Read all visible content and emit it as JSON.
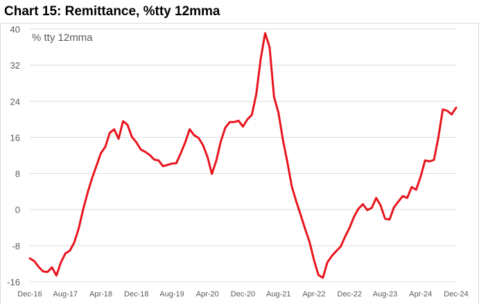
{
  "title": "Chart 15: Remittance, %tty 12mma",
  "chart_data": {
    "type": "line",
    "title": "Chart 15: Remittance, %tty 12mma",
    "annotation": "% tty 12mma",
    "xlabel": "",
    "ylabel": "",
    "ylim": [
      -16,
      40
    ],
    "yticks": [
      40,
      32,
      24,
      16,
      8,
      0,
      -8,
      -16
    ],
    "ytick_labels": [
      "40",
      "32",
      "24",
      "16",
      "8",
      "0",
      "-8",
      "-16"
    ],
    "xtick_labels": [
      "Dec-16",
      "Aug-17",
      "Apr-18",
      "Dec-18",
      "Aug-19",
      "Apr-20",
      "Dec-20",
      "Aug-21",
      "Apr-22",
      "Dec-22",
      "Aug-23",
      "Apr-24",
      "Dec-24"
    ],
    "grid": true,
    "legend": "none",
    "line_color": "#e8141c",
    "grid_color": "#d9d9d9",
    "series": [
      {
        "x": [
          "Dec-16",
          "Jan-17",
          "Feb-17",
          "Mar-17",
          "Apr-17",
          "May-17",
          "Jun-17",
          "Jul-17",
          "Aug-17",
          "Sep-17",
          "Oct-17",
          "Nov-17",
          "Dec-17",
          "Jan-18",
          "Feb-18",
          "Mar-18",
          "Apr-18",
          "May-18",
          "Jun-18",
          "Jul-18",
          "Aug-18",
          "Sep-18",
          "Oct-18",
          "Nov-18",
          "Dec-18",
          "Jan-19",
          "Feb-19",
          "Mar-19",
          "Apr-19",
          "May-19",
          "Jun-19",
          "Jul-19",
          "Aug-19",
          "Sep-19",
          "Oct-19",
          "Nov-19",
          "Dec-19",
          "Jan-20",
          "Feb-20",
          "Mar-20",
          "Apr-20",
          "May-20",
          "Jun-20",
          "Jul-20",
          "Aug-20",
          "Sep-20",
          "Oct-20",
          "Nov-20",
          "Dec-20",
          "Jan-21",
          "Feb-21",
          "Mar-21",
          "Apr-21",
          "May-21",
          "Jun-21",
          "Jul-21",
          "Aug-21",
          "Sep-21",
          "Oct-21",
          "Nov-21",
          "Dec-21",
          "Jan-22",
          "Feb-22",
          "Mar-22",
          "Apr-22",
          "May-22",
          "Jun-22",
          "Jul-22",
          "Aug-22",
          "Sep-22",
          "Oct-22",
          "Nov-22",
          "Dec-22",
          "Jan-23",
          "Feb-23",
          "Mar-23",
          "Apr-23",
          "May-23",
          "Jun-23",
          "Jul-23",
          "Aug-23",
          "Sep-23",
          "Oct-23",
          "Nov-23",
          "Dec-23",
          "Jan-24",
          "Feb-24",
          "Mar-24",
          "Apr-24",
          "May-24",
          "Jun-24",
          "Jul-24",
          "Aug-24",
          "Sep-24",
          "Oct-24",
          "Nov-24",
          "Dec-24"
        ],
        "values": [
          -10.8,
          -11.4,
          -12.7,
          -13.7,
          -13.8,
          -12.8,
          -14.6,
          -11.7,
          -9.7,
          -9.1,
          -7.3,
          -4.2,
          0.0,
          3.7,
          6.9,
          9.7,
          12.5,
          13.9,
          17.0,
          17.8,
          15.7,
          19.6,
          18.8,
          16.1,
          14.9,
          13.3,
          12.8,
          12.1,
          11.1,
          10.9,
          9.6,
          9.9,
          10.2,
          10.3,
          12.5,
          14.9,
          17.8,
          16.5,
          15.9,
          14.3,
          11.7,
          7.9,
          10.9,
          15.1,
          18.1,
          19.4,
          19.4,
          19.7,
          18.4,
          20.0,
          21.0,
          25.6,
          33.4,
          39.1,
          36.0,
          25.0,
          21.4,
          15.4,
          10.5,
          5.1,
          1.8,
          -1.2,
          -4.3,
          -7.2,
          -11.2,
          -14.5,
          -15.1,
          -11.7,
          -10.3,
          -9.2,
          -8.2,
          -6.0,
          -4.0,
          -1.6,
          0.2,
          1.2,
          -0.1,
          0.4,
          2.6,
          0.9,
          -2.0,
          -2.2,
          0.5,
          1.8,
          3.0,
          2.6,
          5.0,
          4.4,
          7.3,
          10.9,
          10.7,
          11.0,
          16.0,
          22.2,
          21.9,
          21.1,
          22.6
        ]
      }
    ]
  }
}
